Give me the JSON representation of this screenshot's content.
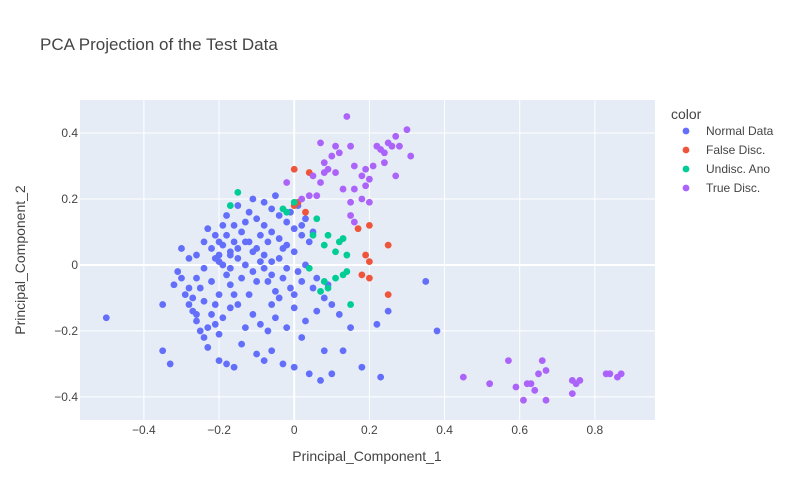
{
  "chart_data": {
    "type": "scatter",
    "title": "PCA Projection of the Test Data",
    "xlabel": "Principal_Component_1",
    "ylabel": "Principal_Component_2",
    "xlim": [
      -0.57,
      0.96
    ],
    "ylim": [
      -0.47,
      0.5
    ],
    "xticks": [
      -0.4,
      -0.2,
      0,
      0.2,
      0.4,
      0.6,
      0.8
    ],
    "xtick_labels": [
      "−0.4",
      "−0.2",
      "0",
      "0.2",
      "0.4",
      "0.6",
      "0.8"
    ],
    "yticks": [
      -0.4,
      -0.2,
      0,
      0.2,
      0.4
    ],
    "ytick_labels": [
      "−0.4",
      "−0.2",
      "0",
      "0.2",
      "0.4"
    ],
    "grid": true,
    "plot_background": "#E5ECF6",
    "legend": {
      "title": "color",
      "placement": "right"
    },
    "series": [
      {
        "name": "Normal Data",
        "color": "#636EFA",
        "points": [
          [
            -0.5,
            -0.16
          ],
          [
            -0.35,
            -0.26
          ],
          [
            -0.33,
            -0.3
          ],
          [
            -0.35,
            -0.12
          ],
          [
            -0.3,
            0.05
          ],
          [
            -0.31,
            -0.02
          ],
          [
            -0.32,
            -0.06
          ],
          [
            -0.29,
            -0.09
          ],
          [
            -0.28,
            -0.12
          ],
          [
            -0.27,
            -0.14
          ],
          [
            -0.26,
            -0.17
          ],
          [
            -0.25,
            -0.2
          ],
          [
            -0.24,
            -0.22
          ],
          [
            -0.23,
            -0.25
          ],
          [
            -0.28,
            0.02
          ],
          [
            -0.26,
            -0.04
          ],
          [
            -0.25,
            -0.07
          ],
          [
            -0.24,
            -0.11
          ],
          [
            -0.22,
            -0.15
          ],
          [
            -0.21,
            -0.18
          ],
          [
            -0.2,
            -0.21
          ],
          [
            -0.22,
            0.05
          ],
          [
            -0.2,
            0.03
          ],
          [
            -0.19,
            0.0
          ],
          [
            -0.18,
            -0.03
          ],
          [
            -0.17,
            -0.06
          ],
          [
            -0.16,
            -0.09
          ],
          [
            -0.15,
            -0.12
          ],
          [
            -0.23,
            0.11
          ],
          [
            -0.21,
            0.09
          ],
          [
            -0.19,
            0.06
          ],
          [
            -0.17,
            0.04
          ],
          [
            -0.15,
            0.02
          ],
          [
            -0.13,
            0.0
          ],
          [
            -0.11,
            -0.02
          ],
          [
            -0.18,
            0.15
          ],
          [
            -0.16,
            0.12
          ],
          [
            -0.14,
            0.1
          ],
          [
            -0.12,
            0.07
          ],
          [
            -0.1,
            0.05
          ],
          [
            -0.08,
            0.03
          ],
          [
            -0.06,
            0.01
          ],
          [
            -0.12,
            0.16
          ],
          [
            -0.1,
            0.14
          ],
          [
            -0.08,
            0.12
          ],
          [
            -0.06,
            0.1
          ],
          [
            -0.04,
            0.08
          ],
          [
            -0.02,
            0.06
          ],
          [
            0.0,
            0.04
          ],
          [
            -0.08,
            0.19
          ],
          [
            -0.06,
            0.17
          ],
          [
            -0.04,
            0.15
          ],
          [
            -0.02,
            0.13
          ],
          [
            0.0,
            0.11
          ],
          [
            0.02,
            0.09
          ],
          [
            0.04,
            0.07
          ],
          [
            -0.2,
            -0.29
          ],
          [
            -0.18,
            -0.3
          ],
          [
            -0.16,
            -0.31
          ],
          [
            -0.1,
            -0.27
          ],
          [
            -0.08,
            -0.29
          ],
          [
            -0.06,
            -0.26
          ],
          [
            -0.03,
            -0.3
          ],
          [
            0.0,
            -0.31
          ],
          [
            0.02,
            -0.22
          ],
          [
            0.04,
            -0.33
          ],
          [
            0.07,
            -0.35
          ],
          [
            0.08,
            -0.26
          ],
          [
            0.1,
            -0.33
          ],
          [
            0.13,
            -0.26
          ],
          [
            0.18,
            -0.31
          ],
          [
            0.23,
            -0.34
          ],
          [
            0.35,
            -0.05
          ],
          [
            0.38,
            -0.2
          ],
          [
            0.25,
            -0.14
          ],
          [
            0.22,
            -0.18
          ],
          [
            0.15,
            -0.19
          ],
          [
            0.12,
            -0.15
          ],
          [
            0.1,
            -0.12
          ],
          [
            0.08,
            -0.1
          ],
          [
            0.06,
            -0.14
          ],
          [
            0.03,
            -0.17
          ],
          [
            0.0,
            -0.13
          ],
          [
            -0.02,
            -0.19
          ],
          [
            -0.05,
            -0.16
          ],
          [
            -0.07,
            -0.2
          ],
          [
            -0.09,
            -0.18
          ],
          [
            -0.11,
            -0.15
          ],
          [
            -0.13,
            -0.19
          ],
          [
            -0.14,
            -0.24
          ],
          [
            -0.17,
            -0.13
          ],
          [
            -0.2,
            -0.09
          ],
          [
            -0.22,
            -0.05
          ],
          [
            -0.24,
            -0.01
          ],
          [
            -0.26,
            0.03
          ],
          [
            -0.07,
            -0.05
          ],
          [
            -0.05,
            -0.08
          ],
          [
            -0.03,
            -0.04
          ],
          [
            -0.01,
            -0.07
          ],
          [
            0.01,
            -0.02
          ],
          [
            0.02,
            -0.05
          ],
          [
            0.05,
            -0.07
          ],
          [
            -0.04,
            0.02
          ],
          [
            -0.1,
            -0.05
          ],
          [
            -0.12,
            -0.09
          ],
          [
            -0.14,
            -0.04
          ],
          [
            -0.16,
            0.07
          ],
          [
            -0.18,
            0.09
          ],
          [
            -0.2,
            0.01
          ],
          [
            -0.15,
            0.18
          ],
          [
            -0.11,
            0.2
          ],
          [
            -0.05,
            0.21
          ],
          [
            0.01,
            0.18
          ],
          [
            0.03,
            0.14
          ],
          [
            0.05,
            0.1
          ],
          [
            -0.09,
            0.09
          ],
          [
            -0.07,
            0.07
          ],
          [
            -0.03,
            0.05
          ],
          [
            -0.24,
            0.07
          ],
          [
            -0.27,
            -0.1
          ],
          [
            -0.3,
            -0.04
          ],
          [
            -0.21,
            -0.12
          ],
          [
            -0.19,
            -0.16
          ],
          [
            -0.23,
            -0.19
          ],
          [
            -0.06,
            -0.12
          ],
          [
            -0.04,
            -0.1
          ],
          [
            0.0,
            -0.09
          ],
          [
            0.06,
            -0.04
          ],
          [
            0.09,
            -0.06
          ],
          [
            -0.13,
            0.13
          ],
          [
            -0.01,
            0.16
          ],
          [
            0.02,
            0.12
          ],
          [
            -0.17,
            -0.01
          ],
          [
            -0.19,
            0.12
          ],
          [
            -0.21,
            0.02
          ],
          [
            -0.28,
            -0.07
          ],
          [
            -0.26,
            -0.15
          ],
          [
            -0.11,
            0.04
          ],
          [
            -0.09,
            0.01
          ],
          [
            -0.15,
            0.05
          ],
          [
            -0.13,
            0.07
          ],
          [
            -0.08,
            -0.01
          ],
          [
            -0.06,
            -0.03
          ],
          [
            -0.02,
            -0.01
          ],
          [
            0.03,
            0.0
          ],
          [
            -0.2,
            0.07
          ],
          [
            -0.17,
            0.03
          ]
        ]
      },
      {
        "name": "False Disc.",
        "color": "#EF553B",
        "points": [
          [
            0.0,
            0.29
          ],
          [
            0.04,
            0.28
          ],
          [
            0.0,
            0.18
          ],
          [
            0.01,
            0.19
          ],
          [
            0.03,
            0.16
          ],
          [
            0.17,
            0.11
          ],
          [
            0.2,
            0.12
          ],
          [
            0.25,
            0.06
          ],
          [
            0.19,
            0.03
          ],
          [
            0.2,
            0.01
          ],
          [
            0.18,
            -0.03
          ],
          [
            0.2,
            -0.04
          ],
          [
            0.25,
            -0.09
          ]
        ]
      },
      {
        "name": "Undisc. Ano",
        "color": "#00CC96",
        "points": [
          [
            -0.15,
            0.22
          ],
          [
            -0.17,
            0.18
          ],
          [
            -0.03,
            0.17
          ],
          [
            -0.02,
            0.16
          ],
          [
            0.0,
            0.19
          ],
          [
            0.05,
            0.09
          ],
          [
            0.06,
            0.14
          ],
          [
            0.08,
            0.06
          ],
          [
            0.09,
            0.09
          ],
          [
            0.12,
            0.07
          ],
          [
            0.13,
            0.08
          ],
          [
            0.11,
            0.04
          ],
          [
            0.14,
            0.03
          ],
          [
            0.04,
            -0.01
          ],
          [
            0.11,
            -0.04
          ],
          [
            0.13,
            -0.03
          ],
          [
            0.14,
            -0.02
          ],
          [
            0.08,
            -0.05
          ],
          [
            0.09,
            -0.07
          ],
          [
            0.07,
            -0.08
          ],
          [
            0.15,
            -0.12
          ]
        ]
      },
      {
        "name": "True Disc.",
        "color": "#AB63FA",
        "points": [
          [
            -0.02,
            0.25
          ],
          [
            0.05,
            0.27
          ],
          [
            0.07,
            0.25
          ],
          [
            0.08,
            0.31
          ],
          [
            0.07,
            0.37
          ],
          [
            0.1,
            0.33
          ],
          [
            0.11,
            0.36
          ],
          [
            0.12,
            0.34
          ],
          [
            0.14,
            0.45
          ],
          [
            0.15,
            0.36
          ],
          [
            0.16,
            0.3
          ],
          [
            0.18,
            0.27
          ],
          [
            0.19,
            0.29
          ],
          [
            0.2,
            0.26
          ],
          [
            0.22,
            0.36
          ],
          [
            0.23,
            0.35
          ],
          [
            0.24,
            0.34
          ],
          [
            0.25,
            0.37
          ],
          [
            0.26,
            0.36
          ],
          [
            0.27,
            0.39
          ],
          [
            0.28,
            0.36
          ],
          [
            0.3,
            0.41
          ],
          [
            0.31,
            0.33
          ],
          [
            0.27,
            0.27
          ],
          [
            0.24,
            0.31
          ],
          [
            0.21,
            0.3
          ],
          [
            0.19,
            0.24
          ],
          [
            0.16,
            0.23
          ],
          [
            0.13,
            0.23
          ],
          [
            0.11,
            0.28
          ],
          [
            0.09,
            0.29
          ],
          [
            0.06,
            0.21
          ],
          [
            0.04,
            0.21
          ],
          [
            0.02,
            0.2
          ],
          [
            0.15,
            0.19
          ],
          [
            0.18,
            0.2
          ],
          [
            0.2,
            0.19
          ],
          [
            0.15,
            0.15
          ],
          [
            0.16,
            0.13
          ],
          [
            0.08,
            0.28
          ],
          [
            0.45,
            -0.34
          ],
          [
            0.52,
            -0.36
          ],
          [
            0.57,
            -0.29
          ],
          [
            0.59,
            -0.37
          ],
          [
            0.61,
            -0.41
          ],
          [
            0.62,
            -0.36
          ],
          [
            0.64,
            -0.38
          ],
          [
            0.65,
            -0.33
          ],
          [
            0.66,
            -0.29
          ],
          [
            0.67,
            -0.32
          ],
          [
            0.67,
            -0.41
          ],
          [
            0.74,
            -0.35
          ],
          [
            0.75,
            -0.36
          ],
          [
            0.76,
            -0.35
          ],
          [
            0.74,
            -0.39
          ],
          [
            0.83,
            -0.33
          ],
          [
            0.84,
            -0.33
          ],
          [
            0.86,
            -0.34
          ],
          [
            0.87,
            -0.33
          ],
          [
            0.63,
            -0.36
          ]
        ]
      }
    ]
  }
}
